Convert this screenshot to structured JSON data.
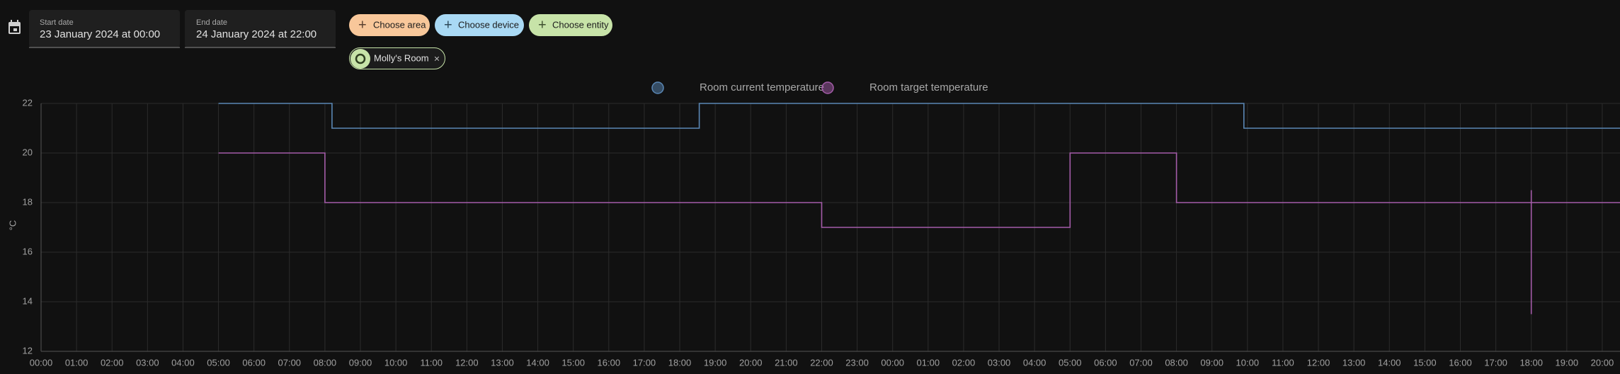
{
  "toolbar": {
    "start_date": {
      "label": "Start date",
      "value": "23 January 2024 at 00:00"
    },
    "end_date": {
      "label": "End date",
      "value": "24 January 2024 at 22:00"
    },
    "chips": [
      "Choose area",
      "Choose device",
      "Choose entity"
    ],
    "selected": [
      "Molly's Room"
    ]
  },
  "chart_data": {
    "type": "line",
    "y_label": "°C",
    "xlim": [
      0,
      44.5
    ],
    "xticks": [
      {
        "value": 0,
        "label": "00:00"
      },
      {
        "value": 1,
        "label": "01:00"
      },
      {
        "value": 2,
        "label": "02:00"
      },
      {
        "value": 3,
        "label": "03:00"
      },
      {
        "value": 4,
        "label": "04:00"
      },
      {
        "value": 5,
        "label": "05:00"
      },
      {
        "value": 6,
        "label": "06:00"
      },
      {
        "value": 7,
        "label": "07:00"
      },
      {
        "value": 8,
        "label": "08:00"
      },
      {
        "value": 9,
        "label": "09:00"
      },
      {
        "value": 10,
        "label": "10:00"
      },
      {
        "value": 11,
        "label": "11:00"
      },
      {
        "value": 12,
        "label": "12:00"
      },
      {
        "value": 13,
        "label": "13:00"
      },
      {
        "value": 14,
        "label": "14:00"
      },
      {
        "value": 15,
        "label": "15:00"
      },
      {
        "value": 16,
        "label": "16:00"
      },
      {
        "value": 17,
        "label": "17:00"
      },
      {
        "value": 18,
        "label": "18:00"
      },
      {
        "value": 19,
        "label": "19:00"
      },
      {
        "value": 20,
        "label": "20:00"
      },
      {
        "value": 21,
        "label": "21:00"
      },
      {
        "value": 22,
        "label": "22:00"
      },
      {
        "value": 23,
        "label": "23:00"
      },
      {
        "value": 24,
        "label": "00:00"
      },
      {
        "value": 25,
        "label": "01:00"
      },
      {
        "value": 26,
        "label": "02:00"
      },
      {
        "value": 27,
        "label": "03:00"
      },
      {
        "value": 28,
        "label": "04:00"
      },
      {
        "value": 29,
        "label": "05:00"
      },
      {
        "value": 30,
        "label": "06:00"
      },
      {
        "value": 31,
        "label": "07:00"
      },
      {
        "value": 32,
        "label": "08:00"
      },
      {
        "value": 33,
        "label": "09:00"
      },
      {
        "value": 34,
        "label": "10:00"
      },
      {
        "value": 35,
        "label": "11:00"
      },
      {
        "value": 36,
        "label": "12:00"
      },
      {
        "value": 37,
        "label": "13:00"
      },
      {
        "value": 38,
        "label": "14:00"
      },
      {
        "value": 39,
        "label": "15:00"
      },
      {
        "value": 40,
        "label": "16:00"
      },
      {
        "value": 41,
        "label": "17:00"
      },
      {
        "value": 42,
        "label": "18:00"
      },
      {
        "value": 43,
        "label": "19:00"
      },
      {
        "value": 44,
        "label": "20:00"
      }
    ],
    "ylim": [
      12,
      22
    ],
    "yticks": [
      12,
      14,
      16,
      18,
      20,
      22
    ],
    "grid": true,
    "series": [
      {
        "name": "Room current temperature",
        "color": "#5a87b5",
        "x": [
          5,
          8.2,
          8.2,
          18.55,
          18.55,
          33.9,
          33.9,
          44.5
        ],
        "values": [
          22,
          22,
          21,
          21,
          22,
          22,
          21,
          21
        ]
      },
      {
        "name": "Room target temperature",
        "color": "#a45ca9",
        "x": [
          5,
          8,
          8,
          22,
          22,
          29,
          29,
          32,
          32,
          42,
          42,
          42,
          42,
          44.5
        ],
        "values": [
          20,
          20,
          18,
          18,
          17,
          17,
          20,
          20,
          18,
          18,
          18.5,
          13.5,
          18,
          18
        ]
      }
    ]
  }
}
